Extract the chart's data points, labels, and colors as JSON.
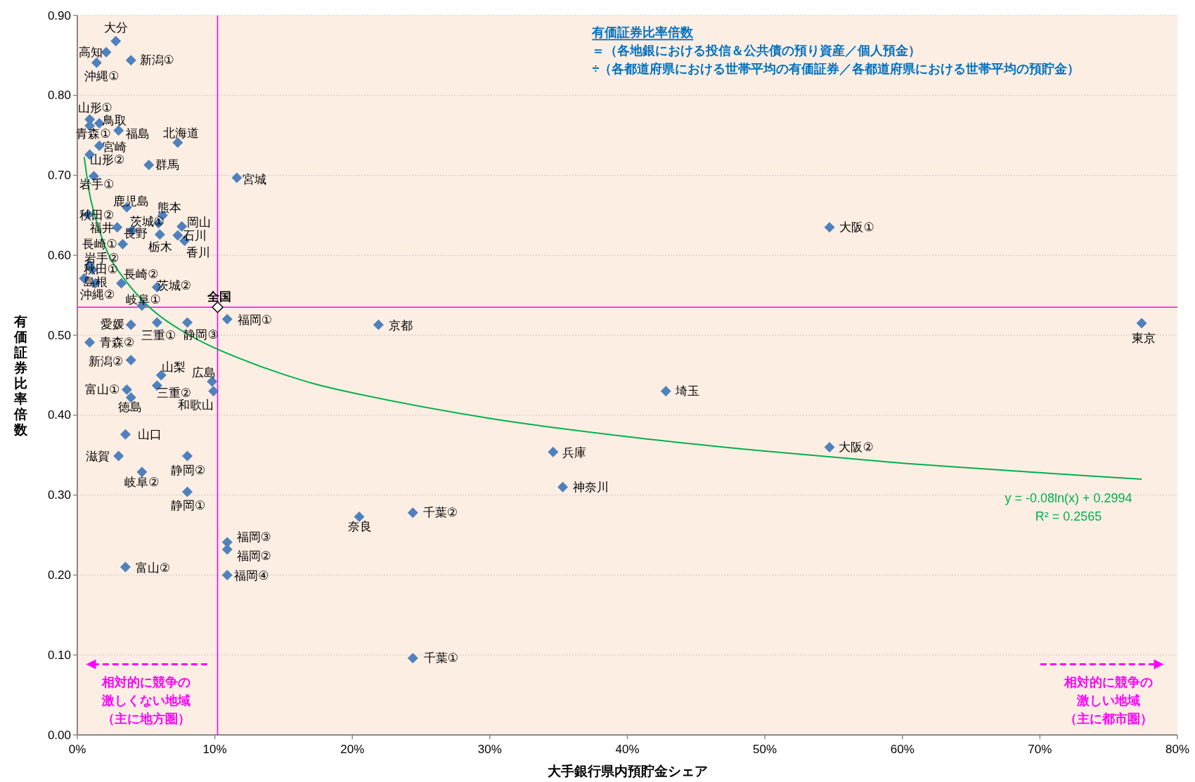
{
  "chart_data": {
    "type": "scatter",
    "xlabel": "大手銀行県内預貯金シェア",
    "ylabel": "有価証券比率倍数",
    "xlim": [
      0,
      0.8
    ],
    "ylim": [
      0,
      0.9
    ],
    "xticks": [
      {
        "value": 0,
        "label": "0%"
      },
      {
        "value": 0.1,
        "label": "10%"
      },
      {
        "value": 0.2,
        "label": "20%"
      },
      {
        "value": 0.3,
        "label": "30%"
      },
      {
        "value": 0.4,
        "label": "40%"
      },
      {
        "value": 0.5,
        "label": "50%"
      },
      {
        "value": 0.6,
        "label": "60%"
      },
      {
        "value": 0.7,
        "label": "70%"
      },
      {
        "value": 0.8,
        "label": "80%"
      }
    ],
    "yticks": [
      {
        "value": 0,
        "label": "0.00"
      },
      {
        "value": 0.1,
        "label": "0.10"
      },
      {
        "value": 0.2,
        "label": "0.20"
      },
      {
        "value": 0.3,
        "label": "0.30"
      },
      {
        "value": 0.4,
        "label": "0.40"
      },
      {
        "value": 0.5,
        "label": "0.50"
      },
      {
        "value": 0.6,
        "label": "0.60"
      },
      {
        "value": 0.7,
        "label": "0.70"
      },
      {
        "value": 0.8,
        "label": "0.80"
      },
      {
        "value": 0.9,
        "label": "0.90"
      }
    ],
    "grid": "y",
    "marker": "diamond",
    "series": [
      {
        "color": "#4f81bd",
        "x": [
          0.028,
          0.021,
          0.014,
          0.039,
          0.009,
          0.016,
          0.009,
          0.03,
          0.073,
          0.016,
          0.009,
          0.052,
          0.012,
          0.116,
          0.036,
          0.008,
          0.062,
          0.029,
          0.059,
          0.04,
          0.076,
          0.073,
          0.06,
          0.078,
          0.033,
          0.009,
          0.011,
          0.005,
          0.013,
          0.032,
          0.058,
          0.047,
          0.109,
          0.039,
          0.058,
          0.08,
          0.009,
          0.039,
          0.061,
          0.098,
          0.099,
          0.058,
          0.036,
          0.039,
          0.035,
          0.03,
          0.08,
          0.047,
          0.08,
          0.109,
          0.109,
          0.109,
          0.035,
          0.219,
          0.244,
          0.205,
          0.244,
          0.346,
          0.353,
          0.428,
          0.547,
          0.547,
          0.774
        ],
        "values": [
          0.868,
          0.854,
          0.841,
          0.844,
          0.77,
          0.765,
          0.762,
          0.756,
          0.741,
          0.737,
          0.726,
          0.713,
          0.699,
          0.697,
          0.66,
          0.651,
          0.65,
          0.635,
          0.64,
          0.631,
          0.636,
          0.625,
          0.626,
          0.618,
          0.614,
          0.588,
          0.582,
          0.571,
          0.565,
          0.565,
          0.56,
          0.537,
          0.52,
          0.513,
          0.516,
          0.516,
          0.491,
          0.469,
          0.45,
          0.442,
          0.43,
          0.437,
          0.432,
          0.422,
          0.376,
          0.349,
          0.349,
          0.329,
          0.304,
          0.241,
          0.232,
          0.2,
          0.21,
          0.513,
          0.278,
          0.273,
          0.096,
          0.354,
          0.31,
          0.43,
          0.36,
          0.635,
          0.515
        ]
      },
      {
        "name": "全国",
        "color": "#ffffff",
        "x": [
          0.102
        ],
        "values": [
          0.535
        ]
      },
      {
        "type": "line",
        "color": "#00b050",
        "marker": "none",
        "x": [
          0.005,
          0.01,
          0.02,
          0.03,
          0.05,
          0.07,
          0.1,
          0.15,
          0.2,
          0.3,
          0.4,
          0.5,
          0.6,
          0.7,
          0.774
        ],
        "values": [
          0.723,
          0.668,
          0.612,
          0.58,
          0.539,
          0.512,
          0.484,
          0.451,
          0.428,
          0.396,
          0.373,
          0.355,
          0.34,
          0.328,
          0.32
        ]
      }
    ],
    "ref_lines": [
      {
        "axis": "x",
        "value": 0.102,
        "color": "#ff00ff"
      },
      {
        "axis": "y",
        "value": 0.535,
        "color": "#ff00ff"
      }
    ],
    "annotations": [
      "有価証券比率倍数",
      "＝（各地銀における投信＆公共債の預り資産／個人預金）",
      "÷（各都道府県における世帯平均の有価証券／各都道府県における世帯平均の預貯金）",
      "相対的に競争の激しくない地域（主に地方圏）",
      "相対的に競争の激しい地域（主に都市圏）",
      "y = -0.08ln(x) + 0.2994",
      "R² = 0.2565",
      {
        "text": "大分",
        "x": 0.028,
        "y": 0.868
      },
      {
        "text": "高知",
        "x": 0.021,
        "y": 0.854
      },
      {
        "text": "沖縄①",
        "x": 0.014,
        "y": 0.841
      },
      {
        "text": "新潟①",
        "x": 0.039,
        "y": 0.844
      },
      {
        "text": "山形①",
        "x": 0.009,
        "y": 0.77
      },
      {
        "text": "鳥取",
        "x": 0.016,
        "y": 0.765
      },
      {
        "text": "青森①",
        "x": 0.009,
        "y": 0.762
      },
      {
        "text": "福島",
        "x": 0.03,
        "y": 0.756
      },
      {
        "text": "北海道",
        "x": 0.073,
        "y": 0.741
      },
      {
        "text": "宮崎",
        "x": 0.016,
        "y": 0.737
      },
      {
        "text": "山形②",
        "x": 0.009,
        "y": 0.726
      },
      {
        "text": "群馬",
        "x": 0.052,
        "y": 0.713
      },
      {
        "text": "岩手①",
        "x": 0.012,
        "y": 0.699
      },
      {
        "text": "宮城",
        "x": 0.116,
        "y": 0.697
      },
      {
        "text": "鹿児島",
        "x": 0.036,
        "y": 0.66
      },
      {
        "text": "秋田②",
        "x": 0.008,
        "y": 0.651
      },
      {
        "text": "熊本",
        "x": 0.062,
        "y": 0.65
      },
      {
        "text": "福井",
        "x": 0.029,
        "y": 0.635
      },
      {
        "text": "茨城①",
        "x": 0.059,
        "y": 0.64
      },
      {
        "text": "長野",
        "x": 0.04,
        "y": 0.631
      },
      {
        "text": "岡山",
        "x": 0.076,
        "y": 0.636
      },
      {
        "text": "石川",
        "x": 0.073,
        "y": 0.625
      },
      {
        "text": "栃木",
        "x": 0.06,
        "y": 0.626
      },
      {
        "text": "香川",
        "x": 0.078,
        "y": 0.618
      },
      {
        "text": "長崎①",
        "x": 0.033,
        "y": 0.614
      },
      {
        "text": "岩手②",
        "x": 0.009,
        "y": 0.588
      },
      {
        "text": "秋田①",
        "x": 0.011,
        "y": 0.582
      },
      {
        "text": "島根",
        "x": 0.005,
        "y": 0.571
      },
      {
        "text": "沖縄②",
        "x": 0.013,
        "y": 0.565
      },
      {
        "text": "長崎②",
        "x": 0.032,
        "y": 0.565
      },
      {
        "text": "茨城②",
        "x": 0.058,
        "y": 0.56
      },
      {
        "text": "岐阜①",
        "x": 0.047,
        "y": 0.537
      },
      {
        "text": "福岡①",
        "x": 0.109,
        "y": 0.52
      },
      {
        "text": "愛媛",
        "x": 0.039,
        "y": 0.513
      },
      {
        "text": "三重①",
        "x": 0.058,
        "y": 0.516
      },
      {
        "text": "静岡③",
        "x": 0.08,
        "y": 0.516
      },
      {
        "text": "青森②",
        "x": 0.009,
        "y": 0.491
      },
      {
        "text": "新潟②",
        "x": 0.039,
        "y": 0.469
      },
      {
        "text": "山梨",
        "x": 0.061,
        "y": 0.45
      },
      {
        "text": "広島",
        "x": 0.098,
        "y": 0.442
      },
      {
        "text": "和歌山",
        "x": 0.099,
        "y": 0.43
      },
      {
        "text": "三重②",
        "x": 0.058,
        "y": 0.437
      },
      {
        "text": "富山①",
        "x": 0.036,
        "y": 0.432
      },
      {
        "text": "徳島",
        "x": 0.039,
        "y": 0.422
      },
      {
        "text": "山口",
        "x": 0.035,
        "y": 0.376
      },
      {
        "text": "滋賀",
        "x": 0.03,
        "y": 0.349
      },
      {
        "text": "静岡②",
        "x": 0.08,
        "y": 0.349
      },
      {
        "text": "岐阜②",
        "x": 0.047,
        "y": 0.329
      },
      {
        "text": "静岡①",
        "x": 0.08,
        "y": 0.304
      },
      {
        "text": "福岡③",
        "x": 0.109,
        "y": 0.241
      },
      {
        "text": "福岡②",
        "x": 0.109,
        "y": 0.232
      },
      {
        "text": "福岡④",
        "x": 0.109,
        "y": 0.2
      },
      {
        "text": "富山②",
        "x": 0.035,
        "y": 0.21
      },
      {
        "text": "京都",
        "x": 0.219,
        "y": 0.513
      },
      {
        "text": "千葉②",
        "x": 0.244,
        "y": 0.278
      },
      {
        "text": "奈良",
        "x": 0.205,
        "y": 0.273
      },
      {
        "text": "千葉①",
        "x": 0.244,
        "y": 0.096
      },
      {
        "text": "兵庫",
        "x": 0.346,
        "y": 0.354
      },
      {
        "text": "神奈川",
        "x": 0.353,
        "y": 0.31
      },
      {
        "text": "埼玉",
        "x": 0.428,
        "y": 0.43
      },
      {
        "text": "大阪②",
        "x": 0.547,
        "y": 0.36
      },
      {
        "text": "大阪①",
        "x": 0.547,
        "y": 0.635
      },
      {
        "text": "東京",
        "x": 0.774,
        "y": 0.515
      }
    ]
  }
}
